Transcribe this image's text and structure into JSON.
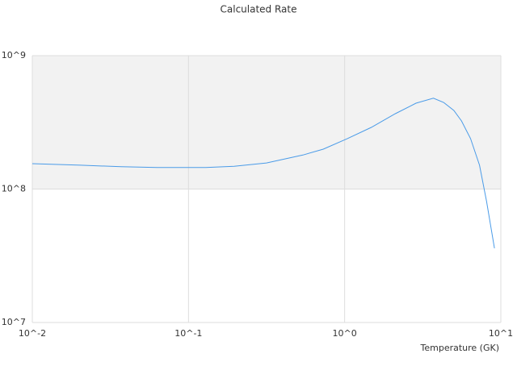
{
  "chart_data": {
    "type": "line",
    "title": "Calculated Rate",
    "x_label": "Temperature (GK)",
    "x": [
      0.01,
      0.0204,
      0.037,
      0.063,
      0.129,
      0.196,
      0.316,
      0.54,
      0.73,
      1.04,
      1.48,
      2.11,
      2.86,
      3.7,
      4.3,
      5.0,
      5.6,
      6.4,
      7.3,
      8.1,
      9.1
    ],
    "series": [
      {
        "color": "#4a9be8",
        "values": [
          155000000,
          151000000,
          147000000,
          145000000,
          145000000,
          148000000,
          157000000,
          180000000,
          199000000,
          239000000,
          290000000,
          367000000,
          440000000,
          480000000,
          446000000,
          388000000,
          324000000,
          239000000,
          151000000,
          81000000,
          36000000
        ]
      }
    ],
    "xlog": true,
    "ylog": true,
    "xlim": [
      0.01,
      10
    ],
    "ylim": [
      10000000,
      1000000000
    ],
    "xticks": [
      {
        "value": 0.01,
        "label": "10^-2"
      },
      {
        "value": 0.1,
        "label": "10^-1"
      },
      {
        "value": 1,
        "label": "10^0"
      },
      {
        "value": 10,
        "label": "10^1"
      }
    ],
    "yticks": [
      {
        "value": 10000000,
        "label": "10^7"
      },
      {
        "value": 100000000,
        "label": "10^8"
      },
      {
        "value": 1000000000,
        "label": "10^9"
      }
    ],
    "grid": true,
    "band_fill": "#f2f2f2"
  }
}
